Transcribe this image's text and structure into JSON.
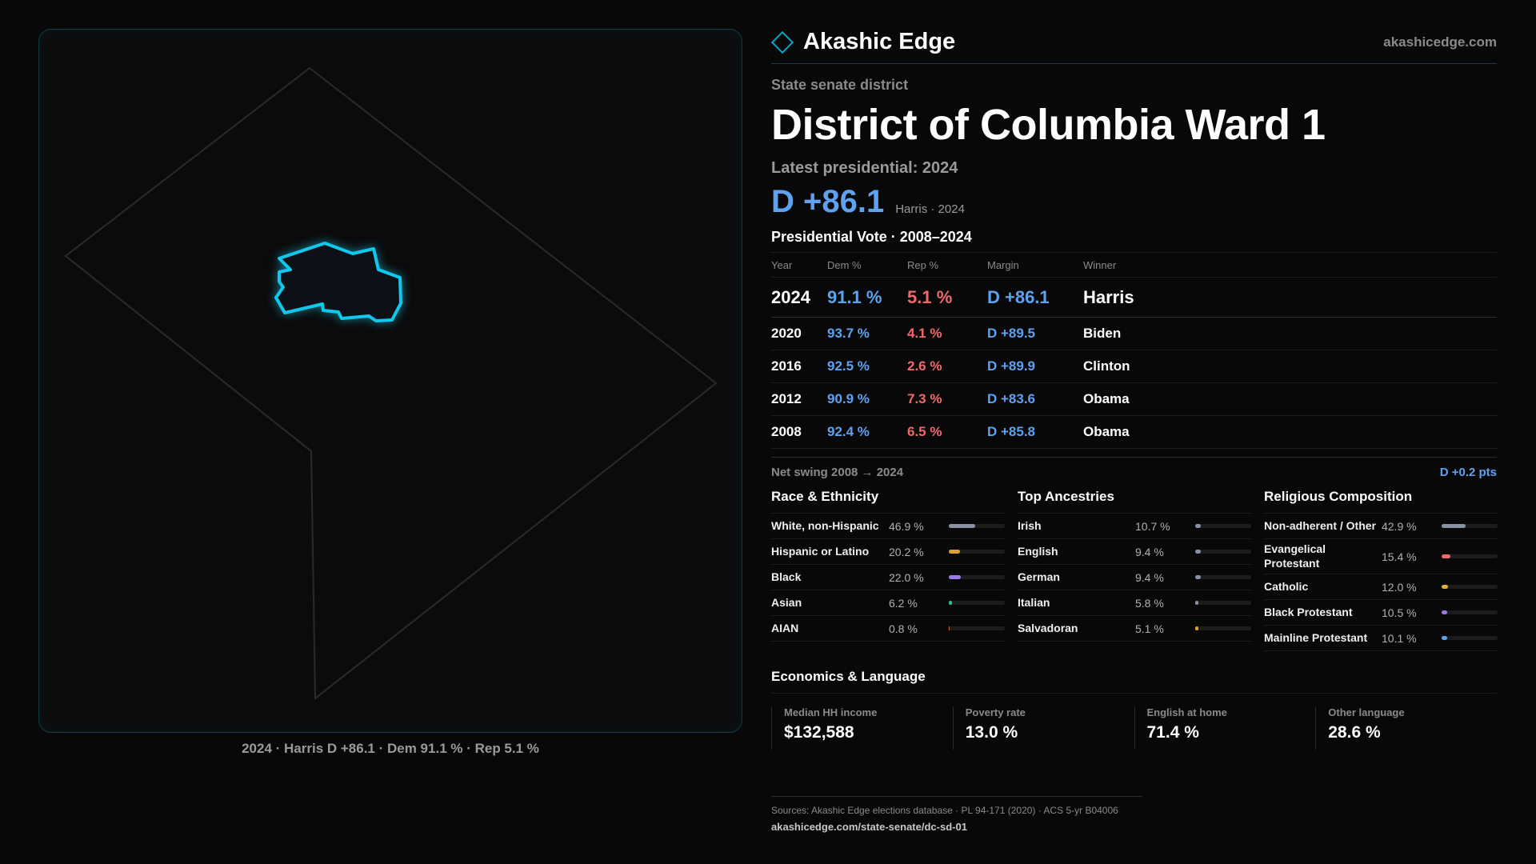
{
  "map": {
    "caption": "2024 · Harris D +86.1 · Dem 91.1 % · Rep 5.1 %",
    "outline_color": "#2a2a2a",
    "highlight_color": "#12c8ea"
  },
  "header": {
    "brand": "Akashic Edge",
    "site": "akashicedge.com",
    "logo_icon": "diamond-icon"
  },
  "district": {
    "kicker": "State senate district",
    "title": "District of Columbia Ward 1",
    "latest_label": "Latest presidential: 2024",
    "margin": "D +86.1",
    "margin_sub": "Harris · 2024"
  },
  "votes": {
    "title": "Presidential Vote · 2008–2024",
    "columns": [
      "Year",
      "Dem %",
      "Rep %",
      "Margin",
      "Winner"
    ],
    "rows": [
      {
        "year": "2024",
        "dem": "91.1 %",
        "rep": "5.1 %",
        "margin": "D +86.1",
        "winner": "Harris"
      },
      {
        "year": "2020",
        "dem": "93.7 %",
        "rep": "4.1 %",
        "margin": "D +89.5",
        "winner": "Biden"
      },
      {
        "year": "2016",
        "dem": "92.5 %",
        "rep": "2.6 %",
        "margin": "D +89.9",
        "winner": "Clinton"
      },
      {
        "year": "2012",
        "dem": "90.9 %",
        "rep": "7.3 %",
        "margin": "D +83.6",
        "winner": "Obama"
      },
      {
        "year": "2008",
        "dem": "92.4 %",
        "rep": "6.5 %",
        "margin": "D +85.8",
        "winner": "Obama"
      }
    ],
    "swing_label": "Net swing 2008 → 2024",
    "swing_value": "D +0.2 pts"
  },
  "race": {
    "title": "Race & Ethnicity",
    "rows": [
      {
        "label": "White, non-Hispanic",
        "pct": "46.9 %",
        "value": 46.9,
        "color": "#8a93a3"
      },
      {
        "label": "Hispanic or Latino",
        "pct": "20.2 %",
        "value": 20.2,
        "color": "#e0a030"
      },
      {
        "label": "Black",
        "pct": "22.0 %",
        "value": 22.0,
        "color": "#9a7ae8"
      },
      {
        "label": "Asian",
        "pct": "6.2 %",
        "value": 6.2,
        "color": "#2fc08a"
      },
      {
        "label": "AIAN",
        "pct": "0.8 %",
        "value": 0.8,
        "color": "#e07030"
      }
    ]
  },
  "ancestry": {
    "title": "Top Ancestries",
    "rows": [
      {
        "label": "Irish",
        "pct": "10.7 %",
        "value": 10.7,
        "color": "#8a93a3"
      },
      {
        "label": "English",
        "pct": "9.4 %",
        "value": 9.4,
        "color": "#8a93a3"
      },
      {
        "label": "German",
        "pct": "9.4 %",
        "value": 9.4,
        "color": "#8a93a3"
      },
      {
        "label": "Italian",
        "pct": "5.8 %",
        "value": 5.8,
        "color": "#8a93a3"
      },
      {
        "label": "Salvadoran",
        "pct": "5.1 %",
        "value": 5.1,
        "color": "#e0a030"
      }
    ]
  },
  "religion": {
    "title": "Religious Composition",
    "rows": [
      {
        "label": "Non-adherent / Other",
        "pct": "42.9 %",
        "value": 42.9,
        "color": "#8a93a3"
      },
      {
        "label": "Evangelical Protestant",
        "pct": "15.4 %",
        "value": 15.4,
        "color": "#f06a6a"
      },
      {
        "label": "Catholic",
        "pct": "12.0 %",
        "value": 12.0,
        "color": "#e0b030"
      },
      {
        "label": "Black Protestant",
        "pct": "10.5 %",
        "value": 10.5,
        "color": "#9a7ae8"
      },
      {
        "label": "Mainline Protestant",
        "pct": "10.1 %",
        "value": 10.1,
        "color": "#5ea2f0"
      }
    ]
  },
  "economics": {
    "title": "Economics & Language",
    "cells": [
      {
        "label": "Median HH income",
        "value": "$132,588"
      },
      {
        "label": "Poverty rate",
        "value": "13.0 %"
      },
      {
        "label": "English at home",
        "value": "71.4 %"
      },
      {
        "label": "Other language",
        "value": "28.6 %"
      }
    ]
  },
  "sources": {
    "text": "Sources: Akashic Edge elections database · PL 94-171 (2020) · ACS 5-yr B04006",
    "url": "akashicedge.com/state-senate/dc-sd-01"
  }
}
